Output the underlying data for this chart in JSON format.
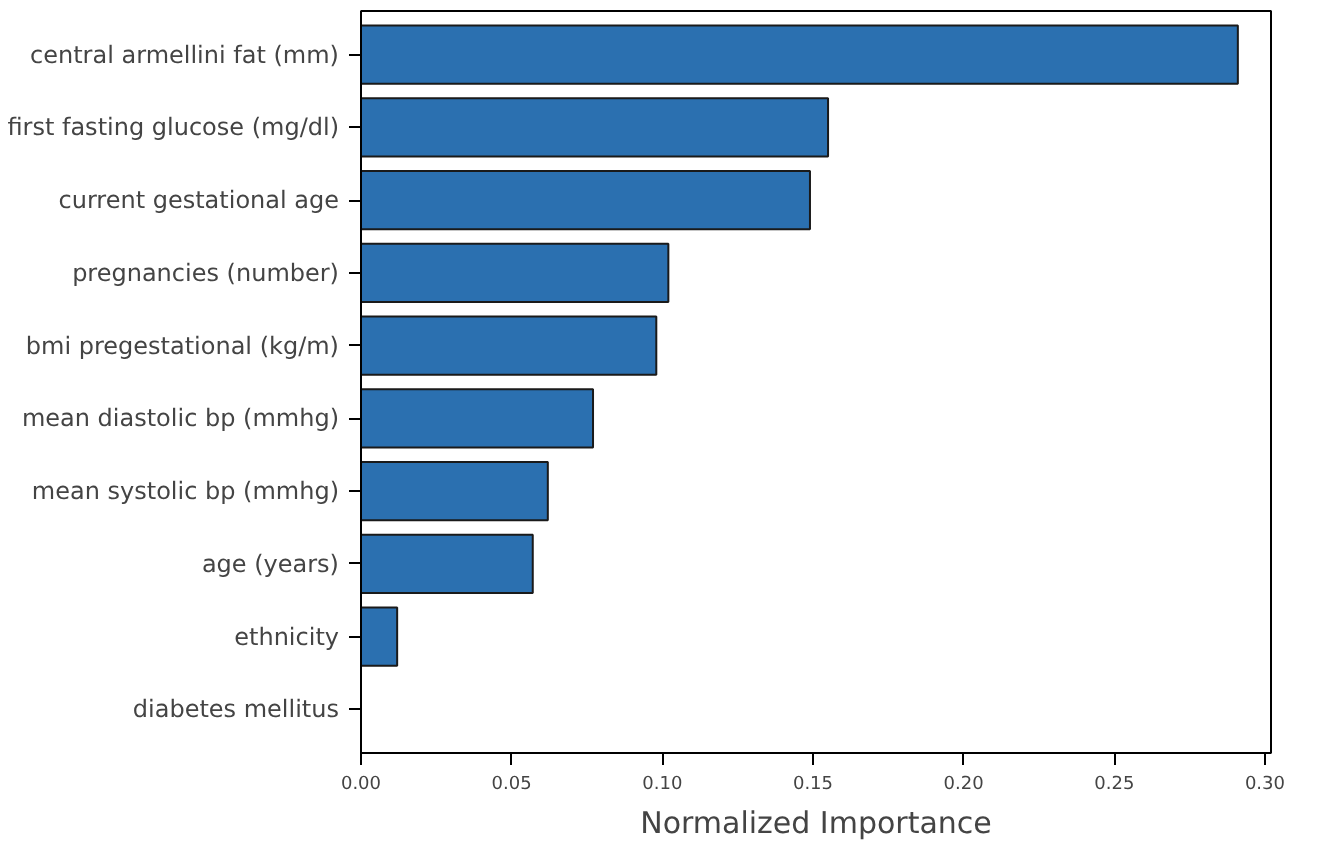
{
  "chart_data": {
    "type": "bar",
    "orientation": "horizontal",
    "xlabel": "Normalized Importance",
    "categories": [
      "central armellini fat (mm)",
      "first fasting glucose (mg/dl)",
      "current gestational age",
      "pregnancies (number)",
      "bmi pregestational (kg/m)",
      "mean diastolic bp (mmhg)",
      "mean systolic bp (mmhg)",
      "age (years)",
      "ethnicity",
      "diabetes mellitus"
    ],
    "values": [
      0.291,
      0.155,
      0.149,
      0.102,
      0.098,
      0.077,
      0.062,
      0.057,
      0.012,
      0.0
    ],
    "color": "#2b70b0",
    "xlim": [
      0,
      0.302
    ],
    "xticks": [
      {
        "value": 0,
        "label": "0.00"
      },
      {
        "value": 0.05,
        "label": "0.05"
      },
      {
        "value": 0.1,
        "label": "0.10"
      },
      {
        "value": 0.15,
        "label": "0.15"
      },
      {
        "value": 0.2,
        "label": "0.20"
      },
      {
        "value": 0.25,
        "label": "0.25"
      },
      {
        "value": 0.3,
        "label": "0.30"
      }
    ],
    "grid": false
  }
}
